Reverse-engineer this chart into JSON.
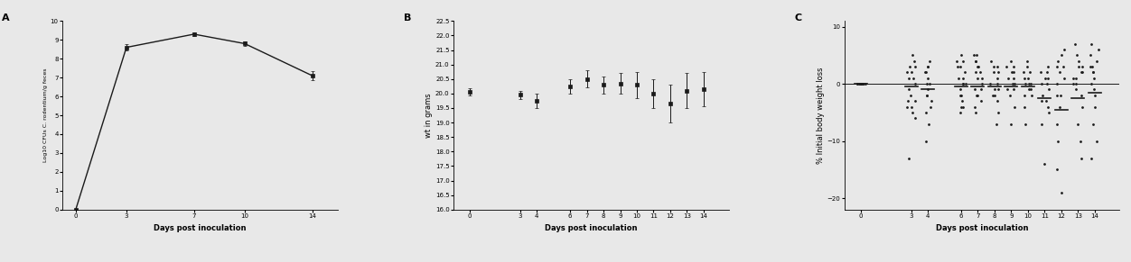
{
  "panel_A": {
    "label": "A",
    "x": [
      0,
      3,
      7,
      10,
      14
    ],
    "y": [
      0,
      8.6,
      9.3,
      8.8,
      7.1
    ],
    "yerr": [
      0,
      0.15,
      0.1,
      0.1,
      0.25
    ],
    "xlabel": "Days post inoculation",
    "ylabel": "Log10 CFUs C. rodentium/g feces",
    "ylim": [
      0,
      10
    ],
    "yticks": [
      0,
      1,
      2,
      3,
      4,
      5,
      6,
      7,
      8,
      9,
      10
    ],
    "xticks": [
      0,
      3,
      7,
      10,
      14
    ]
  },
  "panel_B": {
    "label": "B",
    "x": [
      0,
      3,
      4,
      6,
      7,
      8,
      9,
      10,
      11,
      12,
      13,
      14
    ],
    "y": [
      20.05,
      19.95,
      19.75,
      20.25,
      20.5,
      20.3,
      20.35,
      20.3,
      20.0,
      19.65,
      20.1,
      20.15
    ],
    "yerr": [
      0.12,
      0.15,
      0.25,
      0.25,
      0.3,
      0.3,
      0.35,
      0.45,
      0.5,
      0.65,
      0.6,
      0.6
    ],
    "xlabel": "Days post inoculation",
    "ylabel": "wt in grams",
    "ylim": [
      16.0,
      22.5
    ],
    "yticks": [
      16.0,
      16.5,
      17.0,
      17.5,
      18.0,
      18.5,
      19.0,
      19.5,
      20.0,
      20.5,
      21.0,
      21.5,
      22.0,
      22.5
    ],
    "xticks": [
      0,
      3,
      4,
      6,
      7,
      8,
      9,
      10,
      11,
      12,
      13,
      14
    ]
  },
  "panel_C": {
    "label": "C",
    "xlabel": "Days post inoculation",
    "ylabel": "% Initial body weight loss",
    "ylim": [
      -22,
      11
    ],
    "yticks": [
      -20,
      -10,
      0,
      10
    ],
    "xticks": [
      0,
      3,
      4,
      6,
      7,
      8,
      9,
      10,
      11,
      12,
      13,
      14
    ],
    "mean_y": [
      0,
      -0.5,
      -1.0,
      -0.5,
      -0.5,
      -0.5,
      -0.5,
      -0.5,
      -2.5,
      -4.5,
      -2.5,
      -1.5
    ],
    "scatter_data": {
      "0": [
        0,
        0,
        0,
        0,
        0,
        0,
        0,
        0,
        0,
        0
      ],
      "3": [
        5,
        4,
        3,
        2,
        1,
        0,
        -1,
        -2,
        -3,
        -4,
        -5,
        -6,
        -13,
        2,
        3,
        -3,
        -4,
        1
      ],
      "4": [
        4,
        3,
        2,
        1,
        0,
        -1,
        -2,
        -3,
        -4,
        -5,
        -7,
        -10,
        3,
        2,
        0,
        -2
      ],
      "6": [
        5,
        4,
        3,
        2,
        1,
        0,
        -1,
        -2,
        -3,
        -4,
        -5,
        4,
        3,
        0,
        -2,
        -4,
        0,
        1
      ],
      "7": [
        5,
        4,
        3,
        2,
        1,
        0,
        -1,
        -2,
        -3,
        -4,
        -5,
        3,
        2,
        1,
        -1,
        -2,
        5,
        4
      ],
      "8": [
        4,
        3,
        2,
        1,
        0,
        -1,
        -2,
        -3,
        -5,
        -7,
        3,
        2,
        0,
        -1,
        -2
      ],
      "9": [
        4,
        3,
        2,
        1,
        0,
        -1,
        -2,
        -4,
        -7,
        2,
        1,
        0,
        -1,
        3
      ],
      "10": [
        4,
        3,
        2,
        1,
        0,
        -1,
        -2,
        -4,
        -7,
        2,
        1,
        0,
        -1,
        -2,
        0
      ],
      "11": [
        3,
        2,
        1,
        0,
        -1,
        -2,
        -3,
        -4,
        -5,
        -7,
        -14,
        2,
        1,
        0,
        -3
      ],
      "12": [
        6,
        5,
        4,
        3,
        2,
        1,
        0,
        -2,
        -4,
        -7,
        -10,
        -15,
        -19,
        3,
        -2
      ],
      "13": [
        7,
        5,
        4,
        3,
        2,
        1,
        0,
        -2,
        -4,
        -7,
        -10,
        -13,
        3,
        2,
        1,
        0,
        -1
      ],
      "14": [
        7,
        6,
        5,
        4,
        3,
        2,
        1,
        0,
        -2,
        -4,
        -7,
        -10,
        -13,
        3,
        2,
        -1
      ]
    }
  },
  "line_color": "#1a1a1a",
  "marker_color": "#1a1a1a",
  "font_size_label": 6,
  "font_size_tick": 5,
  "font_size_panel": 8
}
